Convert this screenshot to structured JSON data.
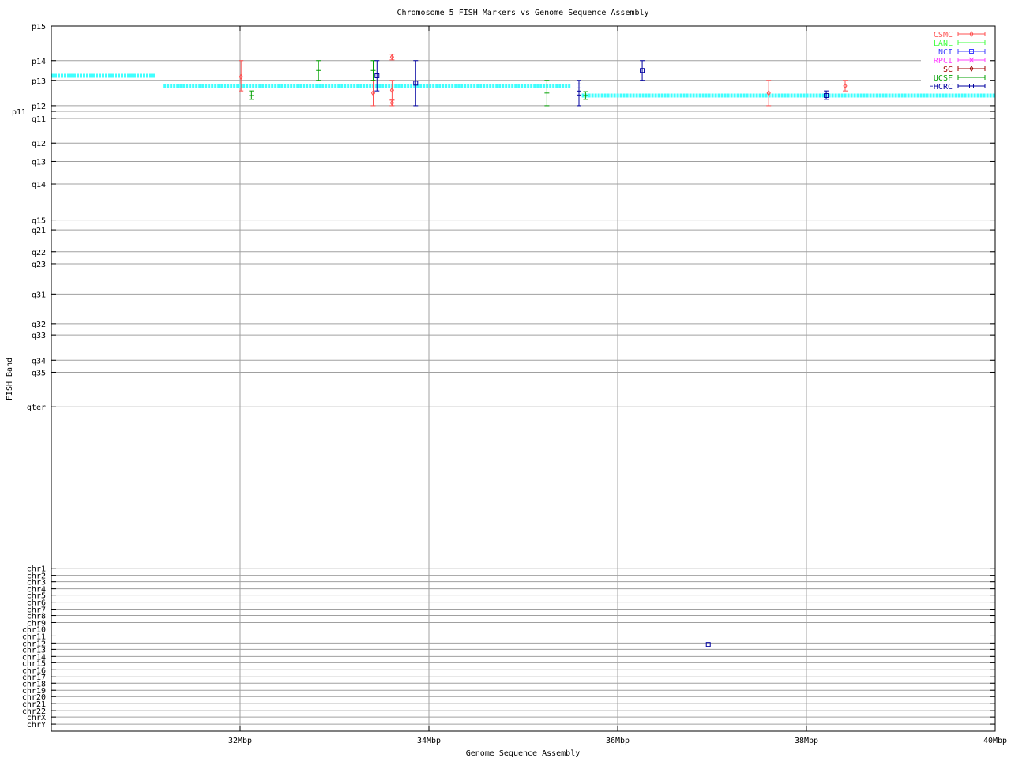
{
  "chart_data": {
    "type": "scatter",
    "title": "Chromosome 5 FISH Markers vs Genome Sequence Assembly",
    "xlabel": "Genome Sequence Assembly",
    "ylabel": "FISH Band",
    "xlim": [
      30,
      40
    ],
    "ylim": [
      0,
      1000
    ],
    "y_reversed": true,
    "grid": true,
    "legend_placement": "top-right",
    "xticks": [
      {
        "value": 32,
        "label": "32Mbp"
      },
      {
        "value": 34,
        "label": "34Mbp"
      },
      {
        "value": 36,
        "label": "36Mbp"
      },
      {
        "value": 38,
        "label": "38Mbp"
      },
      {
        "value": 40,
        "label": "40Mbp"
      }
    ],
    "yticks": [
      {
        "label": "p15",
        "value": 0
      },
      {
        "label": "p14",
        "value": 49
      },
      {
        "label": "p13",
        "value": 77
      },
      {
        "label": "p12",
        "value": 113
      },
      {
        "label": "p11",
        "value": 121
      },
      {
        "label": "q11",
        "value": 131
      },
      {
        "label": "q12",
        "value": 166
      },
      {
        "label": "q13",
        "value": 192
      },
      {
        "label": "q14",
        "value": 224
      },
      {
        "label": "q15",
        "value": 275
      },
      {
        "label": "q21",
        "value": 289
      },
      {
        "label": "q22",
        "value": 320
      },
      {
        "label": "q23",
        "value": 337
      },
      {
        "label": "q31",
        "value": 380
      },
      {
        "label": "q32",
        "value": 422
      },
      {
        "label": "q33",
        "value": 438
      },
      {
        "label": "q34",
        "value": 474
      },
      {
        "label": "q35",
        "value": 491
      },
      {
        "label": "qter",
        "value": 540
      },
      {
        "label": "chr1",
        "value": 769
      },
      {
        "label": "chr2",
        "value": 779
      },
      {
        "label": "chr3",
        "value": 788
      },
      {
        "label": "chr4",
        "value": 798
      },
      {
        "label": "chr5",
        "value": 807
      },
      {
        "label": "chr6",
        "value": 817
      },
      {
        "label": "chr7",
        "value": 827
      },
      {
        "label": "chr8",
        "value": 836
      },
      {
        "label": "chr9",
        "value": 846
      },
      {
        "label": "chr10",
        "value": 855
      },
      {
        "label": "chr11",
        "value": 865
      },
      {
        "label": "chr12",
        "value": 875
      },
      {
        "label": "chr13",
        "value": 884
      },
      {
        "label": "chr14",
        "value": 894
      },
      {
        "label": "chr15",
        "value": 903
      },
      {
        "label": "chr16",
        "value": 913
      },
      {
        "label": "chr17",
        "value": 923
      },
      {
        "label": "chr18",
        "value": 932
      },
      {
        "label": "chr19",
        "value": 942
      },
      {
        "label": "chr20",
        "value": 951
      },
      {
        "label": "chr21",
        "value": 961
      },
      {
        "label": "chr22",
        "value": 971
      },
      {
        "label": "chrX",
        "value": 980
      },
      {
        "label": "chrY",
        "value": 990
      }
    ],
    "assembly": {
      "color": "#40ffff",
      "segments": [
        {
          "x0": 30.0,
          "x1": 31.1,
          "y": 70.5
        },
        {
          "x0": 31.19,
          "x1": 35.5,
          "y": 85
        },
        {
          "x0": 35.62,
          "x1": 40.0,
          "y": 98.5
        }
      ]
    },
    "series": [
      {
        "name": "CSMC",
        "color": "#ff5050",
        "marker": "diamond",
        "points": [
          {
            "x": 32.01,
            "y": 72,
            "ylow": 49,
            "yhigh": 92
          },
          {
            "x": 33.41,
            "y": 95,
            "ylow": 77,
            "yhigh": 113
          },
          {
            "x": 33.61,
            "y": 44,
            "ylow": 40,
            "yhigh": 48
          },
          {
            "x": 33.61,
            "y": 91,
            "ylow": 77,
            "yhigh": 105
          },
          {
            "x": 33.61,
            "y": 109,
            "ylow": 105,
            "yhigh": 113
          },
          {
            "x": 37.6,
            "y": 95,
            "ylow": 77,
            "yhigh": 113
          },
          {
            "x": 38.41,
            "y": 85,
            "ylow": 77,
            "yhigh": 92
          }
        ]
      },
      {
        "name": "LANL",
        "color": "#40ff40",
        "marker": "tick",
        "points": []
      },
      {
        "name": "NCI",
        "color": "#4040ff",
        "marker": "square",
        "points": [
          {
            "x": 35.59,
            "y": 85
          }
        ]
      },
      {
        "name": "RPCI",
        "color": "#ff40ff",
        "marker": "cross",
        "points": []
      },
      {
        "name": "SC",
        "color": "#a00000",
        "marker": "diamond",
        "points": []
      },
      {
        "name": "UCSF",
        "color": "#00a000",
        "marker": "tick",
        "points": [
          {
            "x": 32.12,
            "y": 98.5,
            "ylow": 92,
            "yhigh": 104
          },
          {
            "x": 32.83,
            "y": 63,
            "ylow": 49,
            "yhigh": 77
          },
          {
            "x": 33.41,
            "y": 63,
            "ylow": 49,
            "yhigh": 77
          },
          {
            "x": 35.25,
            "y": 95,
            "ylow": 77,
            "yhigh": 113
          },
          {
            "x": 35.66,
            "y": 98.5,
            "ylow": 93,
            "yhigh": 104
          }
        ]
      },
      {
        "name": "FHCRC",
        "color": "#0000a0",
        "marker": "square",
        "points": [
          {
            "x": 33.45,
            "y": 70.5,
            "ylow": 49,
            "yhigh": 92
          },
          {
            "x": 33.86,
            "y": 81,
            "ylow": 49,
            "yhigh": 113
          },
          {
            "x": 35.59,
            "y": 95,
            "ylow": 77,
            "yhigh": 113
          },
          {
            "x": 36.26,
            "y": 63,
            "ylow": 49,
            "yhigh": 77
          },
          {
            "x": 38.21,
            "y": 98.5,
            "ylow": 92,
            "yhigh": 104
          },
          {
            "x": 36.96,
            "y": 877
          }
        ]
      }
    ]
  }
}
